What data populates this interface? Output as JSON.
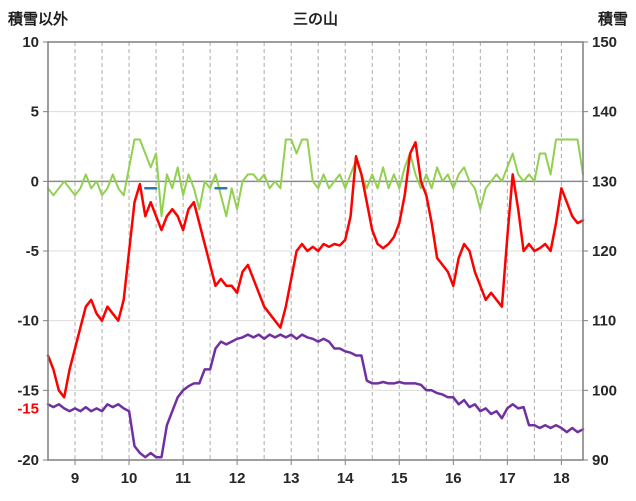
{
  "header": {
    "left_axis_title": "積雪以外",
    "title": "三の山",
    "right_axis_title": "積雪"
  },
  "chart_data": {
    "type": "line",
    "title": "三の山",
    "xlabel": "",
    "ylabel_left": "積雪以外",
    "ylabel_right": "積雪",
    "xlim": [
      8.5,
      18.4
    ],
    "ylim_left": [
      -20,
      10
    ],
    "ylim_right": [
      90,
      150
    ],
    "x_ticks": [
      9,
      10,
      11,
      12,
      13,
      14,
      15,
      16,
      17,
      18
    ],
    "y_left_ticks": [
      10,
      5,
      0,
      -5,
      -10,
      -15,
      -20
    ],
    "y_right_ticks": [
      150,
      140,
      130,
      120,
      110,
      100,
      90
    ],
    "grid": {
      "vertical_dashed_step": 0.5,
      "horizontal_step": 5,
      "grid_on": true
    },
    "legend": "none",
    "colors": {
      "frame": "#7F7F7F",
      "grid_v": "#ABABAB",
      "grid_h": "#DCDCDC",
      "zero_line": "#8C8C8C",
      "red": "#FF0000",
      "green": "#92D050",
      "purple": "#7030A0",
      "blue": "#2E75B6"
    },
    "x_start": 8.5,
    "x_step": 0.1,
    "series": [
      {
        "name": "green-near-zero",
        "color": "#92D050",
        "width": 2,
        "axis": "left",
        "values": [
          -0.5,
          -1,
          -0.5,
          0,
          -0.5,
          -1,
          -0.5,
          0.5,
          -0.5,
          0,
          -1,
          -0.5,
          0.5,
          -0.5,
          -1,
          1,
          3,
          3,
          2,
          1,
          2,
          -2.5,
          0.5,
          -0.5,
          1,
          -1,
          0.5,
          -0.5,
          -2,
          0,
          -0.5,
          0.5,
          -1,
          -2.5,
          -0.5,
          -2,
          0,
          0.5,
          0.5,
          0,
          0.5,
          -0.5,
          0,
          -0.5,
          3,
          3,
          2,
          3,
          3,
          0,
          -0.5,
          0.5,
          -0.5,
          0,
          0.5,
          -0.5,
          0.5,
          1.5,
          0.5,
          -0.5,
          0.5,
          -0.5,
          1,
          -0.5,
          0.5,
          -0.5,
          1,
          2,
          0.5,
          -0.5,
          0.5,
          -0.5,
          1,
          0,
          0.5,
          -0.5,
          0.5,
          1,
          0,
          -0.5,
          -2,
          -0.5,
          0,
          0.5,
          0,
          1,
          2,
          0.5,
          0,
          0.5,
          0,
          2,
          2,
          0.5,
          3,
          3,
          3,
          3,
          3,
          0.5
        ]
      },
      {
        "name": "blue-marks",
        "color": "#2E75B6",
        "width": 2.5,
        "axis": "left",
        "segments": [
          {
            "x": [
              10.3,
              10.4,
              10.5
            ],
            "y": [
              -0.5,
              -0.5,
              -0.5
            ]
          },
          {
            "x": [
              11.6,
              11.7,
              11.8
            ],
            "y": [
              -0.5,
              -0.5,
              -0.5
            ]
          }
        ]
      },
      {
        "name": "purple-snow-depth",
        "color": "#7030A0",
        "width": 2.5,
        "axis": "right",
        "values": [
          98,
          97.6,
          98,
          97.4,
          97,
          97.4,
          97,
          97.6,
          97,
          97.4,
          97,
          98,
          97.6,
          98,
          97.4,
          97,
          92,
          91,
          90.4,
          91,
          90.4,
          90.4,
          95,
          97,
          99,
          100,
          100.6,
          101,
          101,
          103,
          103,
          106,
          107,
          106.6,
          107,
          107.4,
          107.6,
          108,
          107.6,
          108,
          107.4,
          108,
          107.6,
          108,
          107.6,
          108,
          107.4,
          108,
          107.6,
          107.4,
          107,
          107.4,
          107,
          106,
          106,
          105.6,
          105.4,
          105,
          105,
          101.4,
          101,
          101,
          101.2,
          101,
          101,
          101.2,
          101,
          101,
          101,
          100.8,
          100,
          100,
          99.6,
          99.4,
          99,
          99,
          98,
          98.6,
          97.6,
          98,
          97,
          97.4,
          96.6,
          97,
          96,
          97.4,
          98,
          97.4,
          97.6,
          95,
          95,
          94.6,
          95,
          94.6,
          95,
          94.6,
          94,
          94.6,
          94,
          94.4
        ]
      },
      {
        "name": "red-temperature",
        "color": "#FF0000",
        "width": 2.5,
        "axis": "left",
        "values": [
          -12.5,
          -13.5,
          -15,
          -15.5,
          -13.5,
          -12,
          -10.5,
          -9,
          -8.5,
          -9.5,
          -10,
          -9,
          -9.5,
          -10,
          -8.5,
          -5,
          -1.5,
          -0.2,
          -2.5,
          -1.5,
          -2.5,
          -3.5,
          -2.5,
          -2,
          -2.5,
          -3.5,
          -2,
          -1.5,
          -3,
          -4.5,
          -6,
          -7.5,
          -7,
          -7.5,
          -7.5,
          -8,
          -6.5,
          -6,
          -7,
          -8,
          -9,
          -9.5,
          -10,
          -10.5,
          -9,
          -7,
          -5,
          -4.5,
          -5,
          -4.7,
          -5,
          -4.5,
          -4.7,
          -4.5,
          -4.6,
          -4.2,
          -2.5,
          1.8,
          0.5,
          -1.5,
          -3.5,
          -4.5,
          -4.8,
          -4.5,
          -4,
          -3,
          -1,
          2,
          2.8,
          0,
          -1,
          -3,
          -5.5,
          -6,
          -6.5,
          -7.5,
          -5.5,
          -4.5,
          -5,
          -6.5,
          -7.5,
          -8.5,
          -8,
          -8.5,
          -9,
          -4,
          0.5,
          -2,
          -5,
          -4.5,
          -5,
          -4.8,
          -4.5,
          -5,
          -3,
          -0.5,
          -1.5,
          -2.5,
          -3,
          -2.8
        ]
      }
    ],
    "annotations": [
      {
        "text": "-15",
        "color": "#FF0000",
        "y_left": -16.3,
        "position": "left-axis-column"
      }
    ]
  }
}
